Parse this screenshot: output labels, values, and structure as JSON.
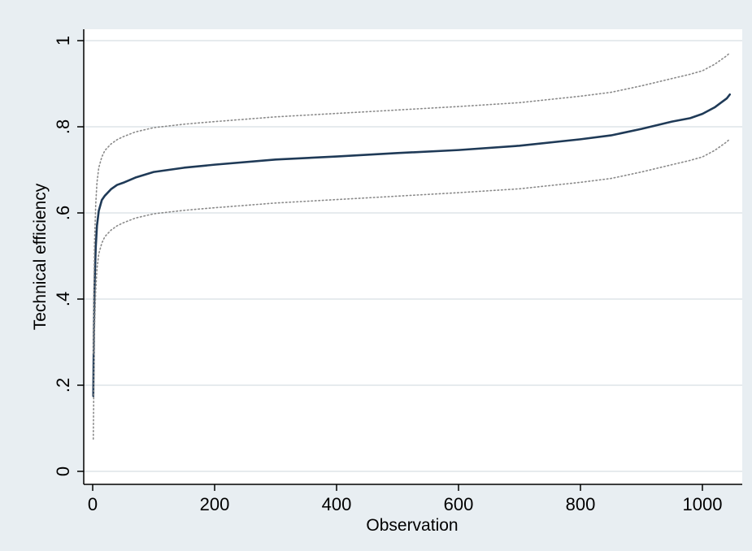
{
  "chart_data": {
    "type": "line",
    "xlabel": "Observation",
    "ylabel": "Technical efficiency",
    "xlim": [
      0,
      1045
    ],
    "ylim": [
      0,
      1
    ],
    "x_ticks": [
      0,
      200,
      400,
      600,
      800,
      1000
    ],
    "x_tick_labels": [
      "0",
      "200",
      "400",
      "600",
      "800",
      "1000"
    ],
    "y_ticks": [
      0,
      0.2,
      0.4,
      0.6,
      0.8,
      1
    ],
    "y_tick_labels": [
      "0",
      ".2",
      ".4",
      ".6",
      ".8",
      "1"
    ],
    "grid": "horizontal",
    "legend": "none",
    "series": [
      {
        "style": "solid",
        "color": "#1f3a57",
        "x": [
          1,
          2,
          3,
          5,
          7,
          10,
          15,
          20,
          30,
          40,
          50,
          70,
          100,
          150,
          200,
          300,
          400,
          500,
          600,
          700,
          800,
          850,
          900,
          950,
          980,
          1000,
          1020,
          1040,
          1045
        ],
        "y": [
          0.175,
          0.32,
          0.43,
          0.52,
          0.57,
          0.605,
          0.63,
          0.64,
          0.655,
          0.665,
          0.67,
          0.682,
          0.695,
          0.705,
          0.712,
          0.724,
          0.731,
          0.739,
          0.746,
          0.756,
          0.771,
          0.78,
          0.795,
          0.812,
          0.82,
          0.83,
          0.845,
          0.866,
          0.875
        ]
      },
      {
        "style": "dotted",
        "color": "#8a8a8a",
        "x": [
          1,
          2,
          3,
          5,
          7,
          10,
          15,
          20,
          30,
          40,
          50,
          70,
          100,
          150,
          200,
          300,
          400,
          500,
          600,
          700,
          800,
          850,
          900,
          950,
          980,
          1000,
          1020,
          1040,
          1045
        ],
        "y": [
          0.075,
          0.22,
          0.33,
          0.42,
          0.47,
          0.505,
          0.53,
          0.545,
          0.56,
          0.57,
          0.577,
          0.588,
          0.598,
          0.606,
          0.612,
          0.623,
          0.631,
          0.639,
          0.647,
          0.656,
          0.671,
          0.68,
          0.695,
          0.712,
          0.722,
          0.73,
          0.745,
          0.765,
          0.772
        ]
      },
      {
        "style": "dotted",
        "color": "#8a8a8a",
        "x": [
          1,
          2,
          3,
          5,
          7,
          10,
          15,
          20,
          30,
          40,
          50,
          70,
          100,
          150,
          200,
          300,
          400,
          500,
          600,
          700,
          800,
          850,
          900,
          950,
          980,
          1000,
          1020,
          1040,
          1045
        ],
        "y": [
          0.275,
          0.42,
          0.53,
          0.62,
          0.67,
          0.705,
          0.73,
          0.745,
          0.76,
          0.77,
          0.777,
          0.788,
          0.798,
          0.806,
          0.812,
          0.823,
          0.831,
          0.839,
          0.847,
          0.856,
          0.871,
          0.88,
          0.895,
          0.912,
          0.922,
          0.93,
          0.945,
          0.965,
          0.972
        ]
      }
    ]
  },
  "colors": {
    "outer_background": "#e8eef2",
    "plot_background": "#ffffff",
    "grid": "#e6ebee",
    "axis": "#000000"
  }
}
